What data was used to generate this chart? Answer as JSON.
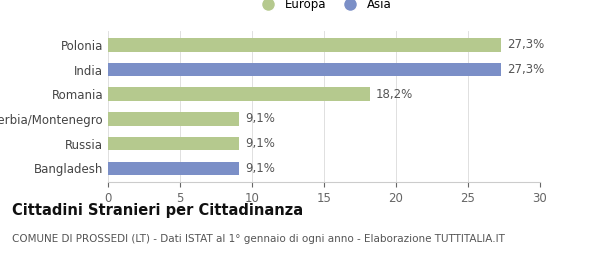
{
  "categories": [
    "Polonia",
    "India",
    "Romania",
    "Serbia/Montenegro",
    "Russia",
    "Bangladesh"
  ],
  "values": [
    27.3,
    27.3,
    18.2,
    9.1,
    9.1,
    9.1
  ],
  "labels": [
    "27,3%",
    "27,3%",
    "18,2%",
    "9,1%",
    "9,1%",
    "9,1%"
  ],
  "bar_colors": [
    "#b5c98e",
    "#7b8fc7",
    "#b5c98e",
    "#b5c98e",
    "#b5c98e",
    "#7b8fc7"
  ],
  "legend_labels": [
    "Europa",
    "Asia"
  ],
  "legend_colors": [
    "#b5c98e",
    "#7b8fc7"
  ],
  "xlim": [
    0,
    30
  ],
  "xticks": [
    0,
    5,
    10,
    15,
    20,
    25,
    30
  ],
  "title": "Cittadini Stranieri per Cittadinanza",
  "subtitle": "COMUNE DI PROSSEDI (LT) - Dati ISTAT al 1° gennaio di ogni anno - Elaborazione TUTTITALIA.IT",
  "background_color": "#ffffff",
  "bar_height": 0.55,
  "label_fontsize": 8.5,
  "tick_fontsize": 8.5,
  "title_fontsize": 10.5,
  "subtitle_fontsize": 7.5
}
